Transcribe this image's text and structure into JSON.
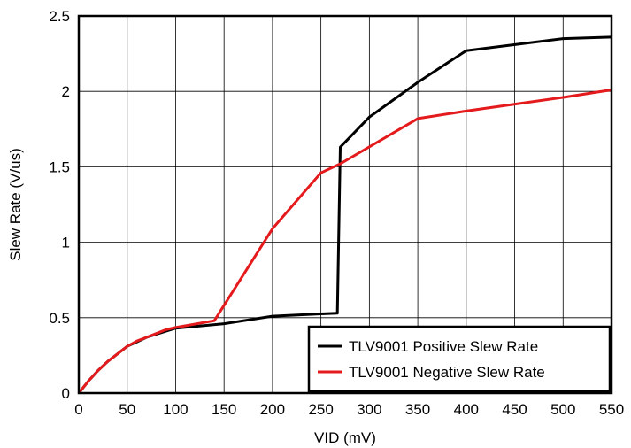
{
  "chart_data": {
    "type": "line",
    "xlabel": "VID (mV)",
    "ylabel": "Slew Rate (V/us)",
    "xlim": [
      0,
      550
    ],
    "ylim": [
      0,
      2.5
    ],
    "x_ticks": [
      "0",
      "50",
      "100",
      "150",
      "200",
      "250",
      "300",
      "350",
      "400",
      "450",
      "500",
      "550"
    ],
    "y_ticks": [
      "0",
      "0.5",
      "1",
      "1.5",
      "2",
      "2.5"
    ],
    "grid": true,
    "legend_position": "bottom-right",
    "series": [
      {
        "name": "TLV9001 Positive Slew Rate",
        "color": "#000000",
        "points": [
          [
            0,
            0
          ],
          [
            5,
            0.04
          ],
          [
            10,
            0.08
          ],
          [
            20,
            0.15
          ],
          [
            30,
            0.21
          ],
          [
            40,
            0.26
          ],
          [
            50,
            0.31
          ],
          [
            60,
            0.34
          ],
          [
            70,
            0.37
          ],
          [
            80,
            0.39
          ],
          [
            90,
            0.41
          ],
          [
            100,
            0.43
          ],
          [
            150,
            0.46
          ],
          [
            200,
            0.51
          ],
          [
            250,
            0.525
          ],
          [
            267,
            0.53
          ],
          [
            270,
            1.63
          ],
          [
            300,
            1.83
          ],
          [
            350,
            2.06
          ],
          [
            400,
            2.27
          ],
          [
            500,
            2.35
          ],
          [
            550,
            2.36
          ]
        ]
      },
      {
        "name": "TLV9001 Negative Slew Rate",
        "color": "#e41a1c",
        "points": [
          [
            0,
            0
          ],
          [
            5,
            0.04
          ],
          [
            10,
            0.08
          ],
          [
            20,
            0.15
          ],
          [
            30,
            0.21
          ],
          [
            40,
            0.26
          ],
          [
            50,
            0.31
          ],
          [
            60,
            0.345
          ],
          [
            70,
            0.37
          ],
          [
            80,
            0.395
          ],
          [
            90,
            0.42
          ],
          [
            100,
            0.435
          ],
          [
            140,
            0.48
          ],
          [
            200,
            1.09
          ],
          [
            250,
            1.46
          ],
          [
            270,
            1.52
          ],
          [
            350,
            1.82
          ],
          [
            400,
            1.87
          ],
          [
            500,
            1.96
          ],
          [
            550,
            2.01
          ]
        ]
      }
    ]
  }
}
